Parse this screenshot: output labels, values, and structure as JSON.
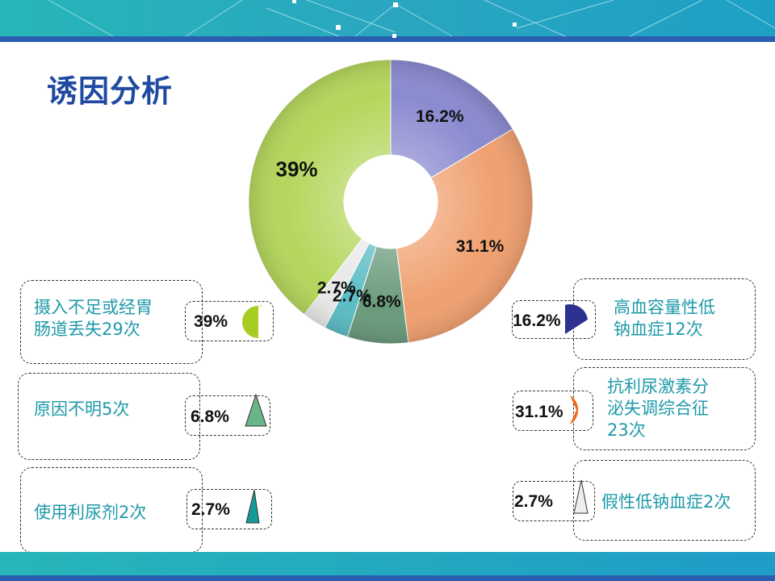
{
  "title": "诱因分析",
  "chart_data": {
    "type": "pie",
    "donut": true,
    "slices": [
      {
        "label": "高血容量性低钠血症12次",
        "value": 16.2,
        "value_label": "16.2%",
        "color": "#8a8ad0"
      },
      {
        "label": "抗利尿激素分泌失调综合征23次",
        "value": 31.1,
        "value_label": "31.1%",
        "color": "#f0a070"
      },
      {
        "label": "原因不明5次",
        "value": 6.8,
        "value_label": "6.8%",
        "color": "#6a9a7c"
      },
      {
        "label": "使用利尿剂2次",
        "value": 2.7,
        "value_label": "2.7%",
        "color": "#5cbcc4"
      },
      {
        "label": "假性低钠血症2次",
        "value": 2.7,
        "value_label": "2.7%",
        "color": "#e8e8e8"
      },
      {
        "label": "摄入不足或经胃肠道丢失29次",
        "value": 39,
        "value_label": "39%",
        "color": "#b4d65c"
      }
    ]
  },
  "legend_left": [
    {
      "text_lines": [
        "摄入不足或经胃",
        "肠道丢失29次"
      ],
      "pct": "39%",
      "icon": "green-pie-icon",
      "color": "#a7cc22"
    },
    {
      "text_lines": [
        "原因不明5次"
      ],
      "pct": "6.8%",
      "icon": "green-triangle-icon",
      "color": "#6ab48a"
    },
    {
      "text_lines": [
        "使用利尿剂2次"
      ],
      "pct": "2.7%",
      "icon": "teal-triangle-icon",
      "color": "#159a98"
    }
  ],
  "legend_right": [
    {
      "text_lines": [
        "高血容量性低",
        "钠血症12次"
      ],
      "pct": "16.2%",
      "icon": "blue-pie-icon",
      "color": "#2e3192"
    },
    {
      "text_lines": [
        "抗利尿激素分",
        "泌失调综合征",
        "23次"
      ],
      "pct": "31.1%",
      "icon": "orange-pie-icon",
      "color": "#f26b1d"
    },
    {
      "text_lines": [
        "假性低钠血症2次"
      ],
      "pct": "2.7%",
      "icon": "white-triangle-icon",
      "color": "#eeeeee"
    }
  ]
}
